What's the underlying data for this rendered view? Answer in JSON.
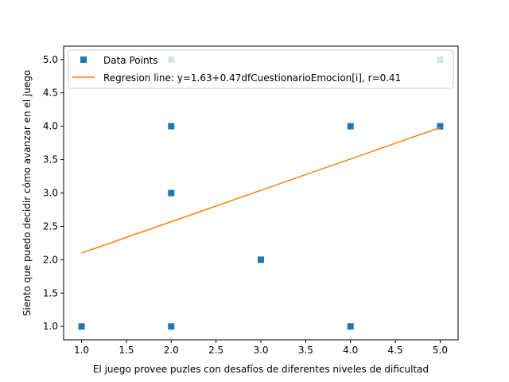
{
  "chart_data": {
    "type": "scatter",
    "title": "",
    "xlabel": "El juego provee puzles con desafíos de diferentes niveles de dificultad",
    "ylabel": "Siento que puedo decidir cómo avanzar en el juego",
    "xlim": [
      0.8,
      5.2
    ],
    "ylim": [
      0.8,
      5.2
    ],
    "xticks": [
      "1.0",
      "1.5",
      "2.0",
      "2.5",
      "3.0",
      "3.5",
      "4.0",
      "4.5",
      "5.0"
    ],
    "yticks": [
      "1.0",
      "1.5",
      "2.0",
      "2.5",
      "3.0",
      "3.5",
      "4.0",
      "4.5",
      "5.0"
    ],
    "grid": false,
    "legend_position": "top-left",
    "series": [
      {
        "name": "Data Points",
        "kind": "scatter",
        "marker": "square",
        "color": "#1f77b4",
        "points": [
          {
            "x": 1,
            "y": 1
          },
          {
            "x": 2,
            "y": 1
          },
          {
            "x": 2,
            "y": 3
          },
          {
            "x": 2,
            "y": 4
          },
          {
            "x": 2,
            "y": 5
          },
          {
            "x": 3,
            "y": 2
          },
          {
            "x": 4,
            "y": 1
          },
          {
            "x": 4,
            "y": 4
          },
          {
            "x": 5,
            "y": 4
          },
          {
            "x": 5,
            "y": 5
          }
        ]
      },
      {
        "name": "Regresion line: y=1.63+0.47dfCuestionarioEmocion[i], r=0.41",
        "kind": "line",
        "color": "#ff7f0e",
        "intercept": 1.63,
        "slope": 0.47,
        "x_range": [
          1,
          5
        ]
      }
    ]
  }
}
